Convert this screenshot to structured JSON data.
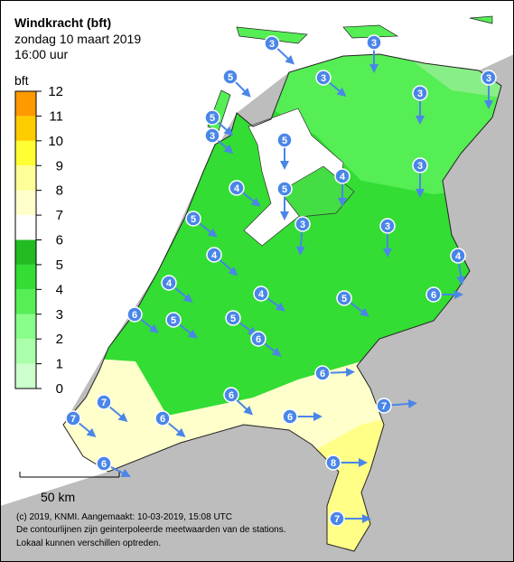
{
  "header": {
    "title": "Windkracht (bft)",
    "date": "zondag 10 maart 2019",
    "time": "16:00 uur"
  },
  "legend": {
    "unit": "bft",
    "ticks": [
      0,
      1,
      2,
      3,
      4,
      5,
      6,
      7,
      8,
      9,
      10,
      11,
      12
    ]
  },
  "stations": [
    {
      "value": 3
    },
    {
      "value": 3
    },
    {
      "value": 3
    },
    {
      "value": 3
    },
    {
      "value": 5
    },
    {
      "value": 3
    },
    {
      "value": 5
    },
    {
      "value": 3
    },
    {
      "value": 5
    },
    {
      "value": 3
    },
    {
      "value": 4
    },
    {
      "value": 4
    },
    {
      "value": 5
    },
    {
      "value": 5
    },
    {
      "value": 3
    },
    {
      "value": 3
    },
    {
      "value": 4
    },
    {
      "value": 4
    },
    {
      "value": 4
    },
    {
      "value": 4
    },
    {
      "value": 5
    },
    {
      "value": 6
    },
    {
      "value": 6
    },
    {
      "value": 5
    },
    {
      "value": 5
    },
    {
      "value": 6
    },
    {
      "value": 6
    },
    {
      "value": 6
    },
    {
      "value": 7
    },
    {
      "value": 7
    },
    {
      "value": 7
    },
    {
      "value": 6
    },
    {
      "value": 6
    },
    {
      "value": 8
    },
    {
      "value": 6
    },
    {
      "value": 7
    }
  ],
  "scale": "50 km",
  "footer": [
    "(c) 2019, KNMI. Aangemaakt: 10-03-2019, 15:08 UTC",
    "De contourlijnen zijn geinterpoleerde meetwaarden van de stations.",
    "Lokaal kunnen verschillen optreden."
  ]
}
